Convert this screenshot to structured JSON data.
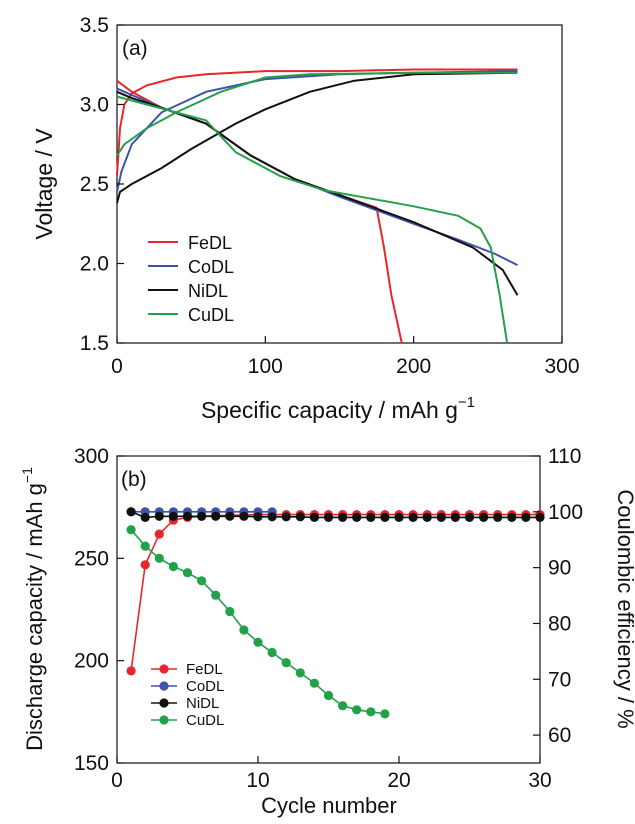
{
  "chart_data": [
    {
      "type": "line",
      "panel_label": "(a)",
      "xlabel": "Specific capacity / mAh g",
      "xlabel_sup": "−1",
      "ylabel": "Voltage / V",
      "xlim": [
        0,
        300
      ],
      "ylim": [
        1.5,
        3.5
      ],
      "xticks": [
        "0",
        "100",
        "200",
        "300"
      ],
      "yticks": [
        "1.5",
        "2.0",
        "2.5",
        "3.0",
        "3.5"
      ],
      "legend_position": "bottom-left",
      "series": [
        {
          "name": "FeDL",
          "color": "#e8262b",
          "charge": [
            [
              0,
              2.55
            ],
            [
              2,
              2.85
            ],
            [
              5,
              3.0
            ],
            [
              10,
              3.07
            ],
            [
              20,
              3.12
            ],
            [
              40,
              3.17
            ],
            [
              60,
              3.19
            ],
            [
              100,
              3.21
            ],
            [
              150,
              3.21
            ],
            [
              200,
              3.22
            ],
            [
              270,
              3.22
            ]
          ],
          "discharge": [
            [
              0,
              3.15
            ],
            [
              10,
              3.08
            ],
            [
              30,
              2.98
            ],
            [
              60,
              2.88
            ],
            [
              90,
              2.68
            ],
            [
              120,
              2.53
            ],
            [
              150,
              2.43
            ],
            [
              175,
              2.35
            ],
            [
              180,
              2.1
            ],
            [
              185,
              1.8
            ],
            [
              192,
              1.5
            ]
          ]
        },
        {
          "name": "CoDL",
          "color": "#3e54a8",
          "charge": [
            [
              0,
              2.45
            ],
            [
              3,
              2.58
            ],
            [
              10,
              2.75
            ],
            [
              30,
              2.95
            ],
            [
              60,
              3.08
            ],
            [
              100,
              3.16
            ],
            [
              150,
              3.19
            ],
            [
              200,
              3.2
            ],
            [
              270,
              3.21
            ]
          ],
          "discharge": [
            [
              0,
              3.1
            ],
            [
              10,
              3.06
            ],
            [
              30,
              2.98
            ],
            [
              60,
              2.88
            ],
            [
              90,
              2.68
            ],
            [
              120,
              2.53
            ],
            [
              150,
              2.42
            ],
            [
              200,
              2.25
            ],
            [
              230,
              2.15
            ],
            [
              255,
              2.06
            ],
            [
              270,
              1.99
            ]
          ]
        },
        {
          "name": "NiDL",
          "color": "#111111",
          "charge": [
            [
              0,
              2.38
            ],
            [
              2,
              2.45
            ],
            [
              10,
              2.5
            ],
            [
              30,
              2.6
            ],
            [
              50,
              2.72
            ],
            [
              80,
              2.88
            ],
            [
              100,
              2.97
            ],
            [
              130,
              3.08
            ],
            [
              160,
              3.15
            ],
            [
              200,
              3.19
            ],
            [
              270,
              3.2
            ]
          ],
          "discharge": [
            [
              0,
              3.08
            ],
            [
              10,
              3.04
            ],
            [
              30,
              2.98
            ],
            [
              60,
              2.88
            ],
            [
              90,
              2.68
            ],
            [
              120,
              2.53
            ],
            [
              150,
              2.43
            ],
            [
              200,
              2.26
            ],
            [
              240,
              2.1
            ],
            [
              260,
              1.96
            ],
            [
              270,
              1.8
            ]
          ]
        },
        {
          "name": "CuDL",
          "color": "#23a04a",
          "charge": [
            [
              0,
              2.68
            ],
            [
              5,
              2.75
            ],
            [
              20,
              2.85
            ],
            [
              40,
              2.95
            ],
            [
              70,
              3.08
            ],
            [
              100,
              3.17
            ],
            [
              130,
              3.19
            ],
            [
              200,
              3.2
            ],
            [
              270,
              3.2
            ]
          ],
          "discharge": [
            [
              0,
              3.05
            ],
            [
              20,
              3.0
            ],
            [
              60,
              2.9
            ],
            [
              80,
              2.7
            ],
            [
              110,
              2.55
            ],
            [
              140,
              2.46
            ],
            [
              170,
              2.41
            ],
            [
              200,
              2.36
            ],
            [
              230,
              2.3
            ],
            [
              245,
              2.22
            ],
            [
              252,
              2.1
            ],
            [
              258,
              1.8
            ],
            [
              263,
              1.5
            ]
          ]
        }
      ]
    },
    {
      "type": "scatter",
      "panel_label": "(b)",
      "xlabel": "Cycle number",
      "ylabel": "Discharge capacity / mAh g",
      "ylabel_sup": "−1",
      "y2label": "Coulombic efficiency / %",
      "xlim": [
        0,
        30
      ],
      "ylim": [
        150,
        300
      ],
      "y2lim": [
        55,
        110
      ],
      "xticks": [
        "0",
        "10",
        "20",
        "30"
      ],
      "yticks": [
        "150",
        "200",
        "250",
        "300"
      ],
      "y2ticks": [
        "60",
        "70",
        "80",
        "90",
        "100",
        "110"
      ],
      "legend_position": "bottom-left",
      "series": [
        {
          "name": "FeDL",
          "color": "#e8262b",
          "axis": "right",
          "x": [
            1,
            2,
            3,
            4,
            5,
            6,
            7,
            8,
            9,
            10,
            11,
            12,
            13,
            14,
            15,
            16,
            17,
            18,
            19,
            20,
            21,
            22,
            23,
            24,
            25,
            26,
            27,
            28,
            29,
            30
          ],
          "y": [
            71.5,
            90.5,
            96,
            98.5,
            99,
            99.2,
            99.3,
            99.4,
            99.4,
            99.5,
            99.5,
            99.5,
            99.5,
            99.5,
            99.5,
            99.5,
            99.5,
            99.5,
            99.5,
            99.5,
            99.5,
            99.5,
            99.5,
            99.5,
            99.5,
            99.5,
            99.5,
            99.5,
            99.5,
            99.5
          ]
        },
        {
          "name": "CoDL",
          "color": "#3e54a8",
          "axis": "right",
          "x": [
            1,
            2,
            3,
            4,
            5,
            6,
            7,
            8,
            9,
            10,
            11
          ],
          "y": [
            100,
            100,
            100,
            100,
            100,
            100,
            100,
            100,
            100,
            100,
            100
          ]
        },
        {
          "name": "NiDL",
          "color": "#111111",
          "axis": "right",
          "x": [
            1,
            2,
            3,
            4,
            5,
            6,
            7,
            8,
            9,
            10,
            11,
            12,
            13,
            14,
            15,
            16,
            17,
            18,
            19,
            20,
            21,
            22,
            23,
            24,
            25,
            26,
            27,
            28,
            29,
            30
          ],
          "y": [
            100,
            99,
            99.2,
            99.2,
            99.2,
            99.2,
            99.2,
            99.2,
            99.2,
            99.1,
            99.1,
            99.1,
            99.1,
            99,
            99,
            99,
            99,
            99,
            99,
            99,
            99,
            99,
            99,
            99,
            99,
            99,
            99,
            99,
            99,
            99
          ]
        },
        {
          "name": "CuDL",
          "color": "#23a04a",
          "axis": "left",
          "x": [
            1,
            2,
            3,
            4,
            5,
            6,
            7,
            8,
            9,
            10,
            11,
            12,
            13,
            14,
            15,
            16,
            17,
            18,
            19
          ],
          "y": [
            264,
            256,
            250,
            246,
            243,
            239,
            232,
            224,
            215,
            209,
            204,
            199,
            194,
            189,
            183,
            178,
            176,
            175,
            174
          ]
        }
      ]
    }
  ]
}
